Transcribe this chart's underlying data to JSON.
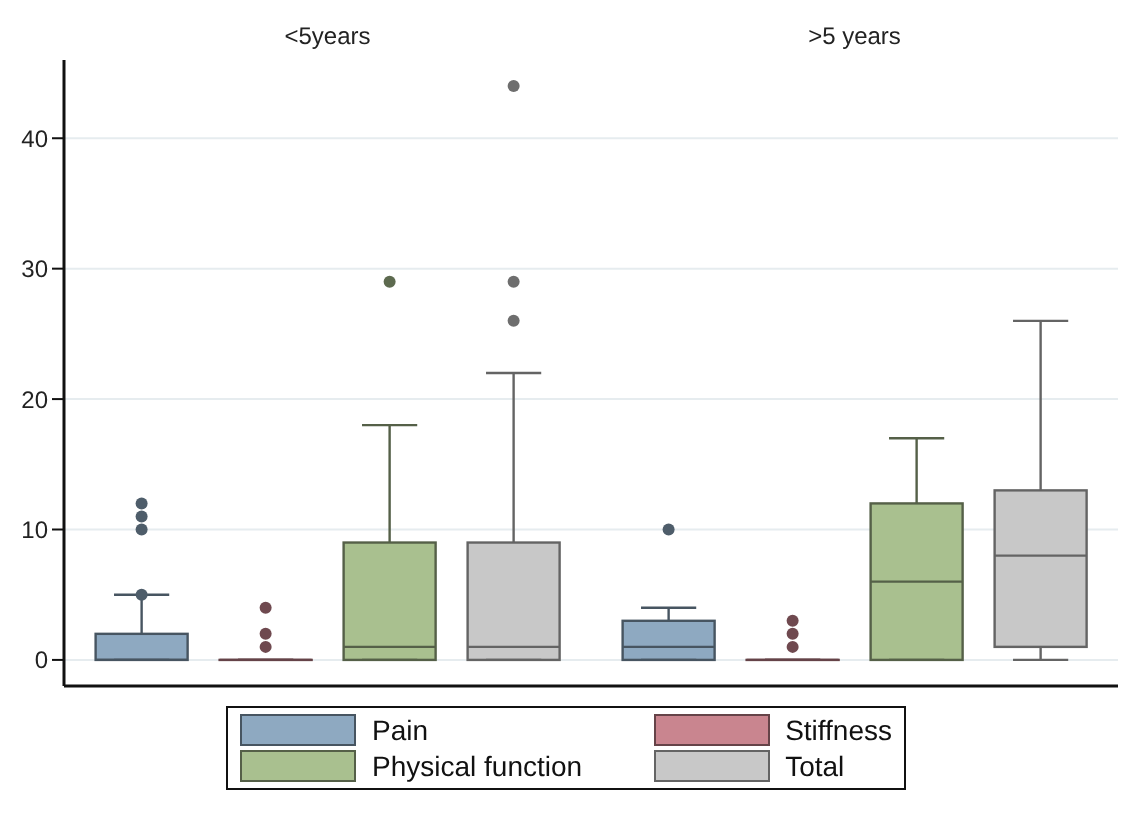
{
  "chart_data": {
    "type": "box",
    "categories": [
      "<5years",
      ">5 years"
    ],
    "ylim": [
      -2,
      46
    ],
    "yticks": [
      0,
      10,
      20,
      30,
      40
    ],
    "grid": "y",
    "legend": "bottom",
    "series": [
      {
        "name": "Pain",
        "color": "#8ea9c1",
        "boxes": [
          {
            "low": 0,
            "q1": 0,
            "median": 0,
            "q3": 2,
            "high": 5,
            "outliers": [
              5,
              10,
              11,
              12
            ]
          },
          {
            "low": 0,
            "q1": 0,
            "median": 1,
            "q3": 3,
            "high": 4,
            "outliers": [
              10
            ]
          }
        ]
      },
      {
        "name": "Stiffness",
        "color": "#c9858f",
        "boxes": [
          {
            "low": 0,
            "q1": 0,
            "median": 0,
            "q3": 0,
            "high": 0,
            "outliers": [
              1,
              2,
              4
            ]
          },
          {
            "low": 0,
            "q1": 0,
            "median": 0,
            "q3": 0,
            "high": 0,
            "outliers": [
              1,
              2,
              3
            ]
          }
        ]
      },
      {
        "name": "Physical function",
        "color": "#a9c08f",
        "boxes": [
          {
            "low": 0,
            "q1": 0,
            "median": 1,
            "q3": 9,
            "high": 18,
            "outliers": [
              29
            ]
          },
          {
            "low": 0,
            "q1": 0,
            "median": 6,
            "q3": 12,
            "high": 17
          }
        ]
      },
      {
        "name": "Total",
        "color": "#c8c8c8",
        "boxes": [
          {
            "low": 0,
            "q1": 0,
            "median": 1,
            "q3": 9,
            "high": 22,
            "outliers": [
              26,
              29,
              44
            ]
          },
          {
            "low": 0,
            "q1": 1,
            "median": 8,
            "q3": 13,
            "high": 26
          }
        ]
      }
    ]
  }
}
